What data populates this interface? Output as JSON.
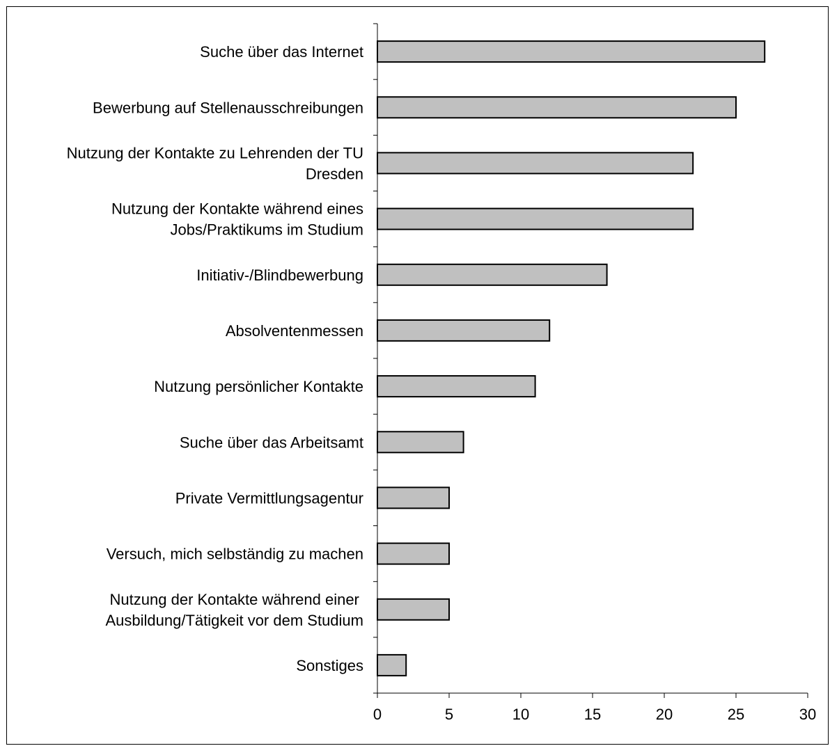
{
  "chart_data": {
    "type": "bar",
    "orientation": "horizontal",
    "title": "",
    "xlabel": "",
    "ylabel": "",
    "categories": [
      "Suche über das Internet",
      "Bewerbung auf Stellenausschreibungen",
      "Nutzung der Kontakte zu Lehrenden der TU Dresden",
      "Nutzung der Kontakte während eines Jobs/Praktikums im Studium",
      "Initiativ-/Blindbewerbung",
      "Absolventenmessen",
      "Nutzung persönlicher Kontakte",
      "Suche über das Arbeitsamt",
      "Private Vermittlungsagentur",
      "Versuch, mich selbständig zu machen",
      "Nutzung der Kontakte während einer Ausbildung/Tätigkeit vor dem Studium",
      "Sonstiges"
    ],
    "category_label_lines": [
      [
        "Suche über das Internet"
      ],
      [
        "Bewerbung auf Stellenausschreibungen"
      ],
      [
        "Nutzung der Kontakte zu Lehrenden der TU",
        "Dresden"
      ],
      [
        "Nutzung der Kontakte während eines",
        "Jobs/Praktikums im Studium"
      ],
      [
        "Initiativ-/Blindbewerbung"
      ],
      [
        "Absolventenmessen"
      ],
      [
        "Nutzung persönlicher Kontakte"
      ],
      [
        "Suche über das Arbeitsamt"
      ],
      [
        "Private Vermittlungsagentur"
      ],
      [
        "Versuch, mich selbständig zu machen"
      ],
      [
        "Nutzung der Kontakte während einer ",
        "Ausbildung/Tätigkeit vor dem Studium"
      ],
      [
        "Sonstiges"
      ]
    ],
    "values": [
      27,
      25,
      22,
      22,
      16,
      12,
      11,
      6,
      5,
      5,
      5,
      2
    ],
    "xlim": [
      0,
      30
    ],
    "xticks": [
      "0",
      "5",
      "10",
      "15",
      "20",
      "25",
      "30"
    ],
    "grid": false,
    "legend": "none",
    "colors": {
      "bar_fill": "#c0c0c0",
      "bar_stroke": "#000000",
      "axis": "#000000",
      "background": "#ffffff"
    }
  }
}
